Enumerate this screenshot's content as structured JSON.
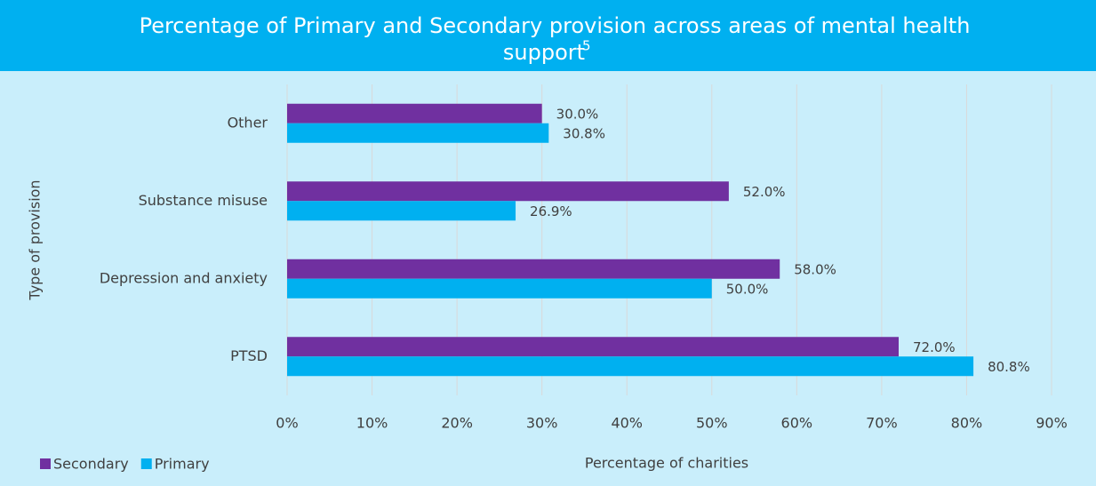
{
  "chart_data": {
    "type": "hbar",
    "title": "Percentage of Primary and Secondary provision across areas of mental health",
    "title_line2": "support",
    "title_superscript": "5",
    "x_label": "Percentage of charities",
    "y_label": "Type of provision",
    "categories": [
      "Other",
      "Substance misuse",
      "Depression and anxiety",
      "PTSD"
    ],
    "series": [
      {
        "name": "Secondary",
        "color": "#7030a0",
        "values": [
          30,
          52,
          58,
          72
        ],
        "value_labels": [
          "30.0%",
          "52.0%",
          "58.0%",
          "72.0%"
        ]
      },
      {
        "name": "Primary",
        "color": "#00b0f0",
        "values": [
          30.8,
          26.9,
          50,
          80.8
        ],
        "value_labels": [
          "30.8%",
          "26.9%",
          "50.0%",
          "80.8%"
        ]
      }
    ],
    "xlim": [
      0,
      90
    ],
    "xticks": [
      {
        "value": 0,
        "label": "0%"
      },
      {
        "value": 10,
        "label": "10%"
      },
      {
        "value": 20,
        "label": "20%"
      },
      {
        "value": 30,
        "label": "30%"
      },
      {
        "value": 40,
        "label": "40%"
      },
      {
        "value": 50,
        "label": "50%"
      },
      {
        "value": 60,
        "label": "60%"
      },
      {
        "value": 70,
        "label": "70%"
      },
      {
        "value": 80,
        "label": "80%"
      },
      {
        "value": 90,
        "label": "90%"
      }
    ],
    "grid": true,
    "legend": "bottom-left"
  }
}
